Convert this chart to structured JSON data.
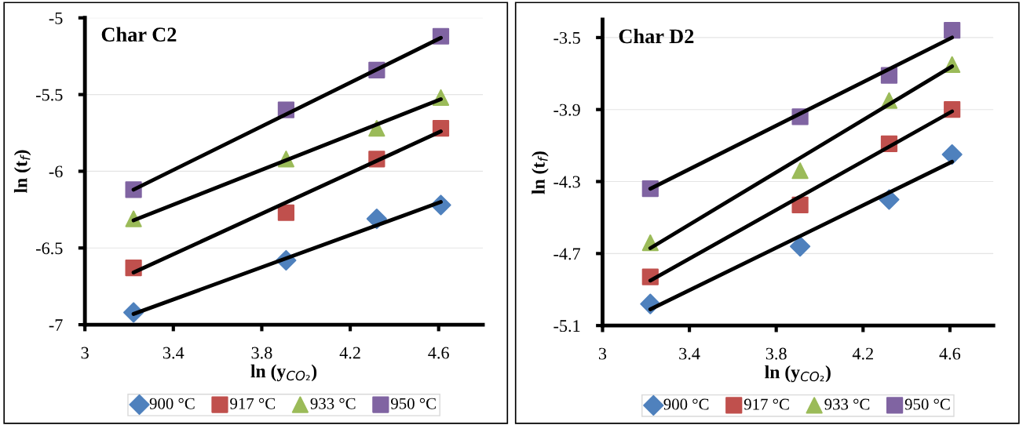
{
  "chart_data": [
    {
      "type": "scatter",
      "title": "Char C2",
      "xlabel": "ln (y$_{CO₂}$)",
      "ylabel": "ln (t$_{f}$)",
      "xlim": [
        3,
        4.8
      ],
      "xticks": [
        3,
        3.4,
        3.8,
        4.2,
        4.6
      ],
      "ylim": [
        -7,
        -5
      ],
      "yticks": [
        -7,
        -6.5,
        -6,
        -5.5,
        -5
      ],
      "grid": "y",
      "legend": "bottom",
      "series": [
        {
          "name": "900 °C",
          "marker": "diamond",
          "color": "#4f81bd",
          "x": [
            3.22,
            3.91,
            4.32,
            4.61
          ],
          "values": [
            -6.92,
            -6.58,
            -6.31,
            -6.22
          ]
        },
        {
          "name": "917 °C",
          "marker": "square",
          "color": "#c0504d",
          "x": [
            3.22,
            3.91,
            4.32,
            4.61
          ],
          "values": [
            -6.63,
            -6.27,
            -5.92,
            -5.72
          ]
        },
        {
          "name": "933 °C",
          "marker": "triangle",
          "color": "#9bbb59",
          "x": [
            3.22,
            3.91,
            4.32,
            4.61
          ],
          "values": [
            -6.31,
            -5.92,
            -5.72,
            -5.52
          ]
        },
        {
          "name": "950 °C",
          "marker": "square",
          "color": "#8064a2",
          "x": [
            3.22,
            3.91,
            4.32,
            4.61
          ],
          "values": [
            -6.12,
            -5.6,
            -5.34,
            -5.12
          ]
        },
        {
          "type": "line",
          "color": "#000000",
          "x": [
            3.22,
            4.61
          ],
          "values": [
            -6.93,
            -6.2
          ]
        },
        {
          "type": "line",
          "color": "#000000",
          "x": [
            3.22,
            4.61
          ],
          "values": [
            -6.66,
            -5.74
          ]
        },
        {
          "type": "line",
          "color": "#000000",
          "x": [
            3.22,
            4.61
          ],
          "values": [
            -6.32,
            -5.53
          ]
        },
        {
          "type": "line",
          "color": "#000000",
          "x": [
            3.22,
            4.61
          ],
          "values": [
            -6.12,
            -5.13
          ]
        }
      ]
    },
    {
      "type": "scatter",
      "title": "Char D2",
      "xlabel": "ln (y$_{CO₂}$)",
      "ylabel": "ln (t$_{f}$)",
      "xlim": [
        3,
        4.8
      ],
      "xticks": [
        3,
        3.4,
        3.8,
        4.2,
        4.6
      ],
      "ylim": [
        -5.1,
        -3.4
      ],
      "yticks": [
        -5.1,
        -4.7,
        -4.3,
        -3.9,
        -3.5
      ],
      "grid": "y",
      "legend": "bottom",
      "series": [
        {
          "name": "900 °C",
          "marker": "diamond",
          "color": "#4f81bd",
          "x": [
            3.22,
            3.91,
            4.32,
            4.61
          ],
          "values": [
            -4.98,
            -4.66,
            -4.4,
            -4.15
          ]
        },
        {
          "name": "917 °C",
          "marker": "square",
          "color": "#c0504d",
          "x": [
            3.22,
            3.91,
            4.32,
            4.61
          ],
          "values": [
            -4.83,
            -4.43,
            -4.09,
            -3.9
          ]
        },
        {
          "name": "933 °C",
          "marker": "triangle",
          "color": "#9bbb59",
          "x": [
            3.22,
            3.91,
            4.32,
            4.61
          ],
          "values": [
            -4.64,
            -4.24,
            -3.85,
            -3.65
          ]
        },
        {
          "name": "950 °C",
          "marker": "square",
          "color": "#8064a2",
          "x": [
            3.22,
            3.91,
            4.32,
            4.61
          ],
          "values": [
            -4.34,
            -3.94,
            -3.71,
            -3.46
          ]
        },
        {
          "type": "line",
          "color": "#000000",
          "x": [
            3.22,
            4.61
          ],
          "values": [
            -5.01,
            -4.19
          ]
        },
        {
          "type": "line",
          "color": "#000000",
          "x": [
            3.22,
            4.61
          ],
          "values": [
            -4.85,
            -3.91
          ]
        },
        {
          "type": "line",
          "color": "#000000",
          "x": [
            3.22,
            4.61
          ],
          "values": [
            -4.67,
            -3.66
          ]
        },
        {
          "type": "line",
          "color": "#000000",
          "x": [
            3.22,
            4.61
          ],
          "values": [
            -4.34,
            -3.5
          ]
        }
      ]
    }
  ]
}
